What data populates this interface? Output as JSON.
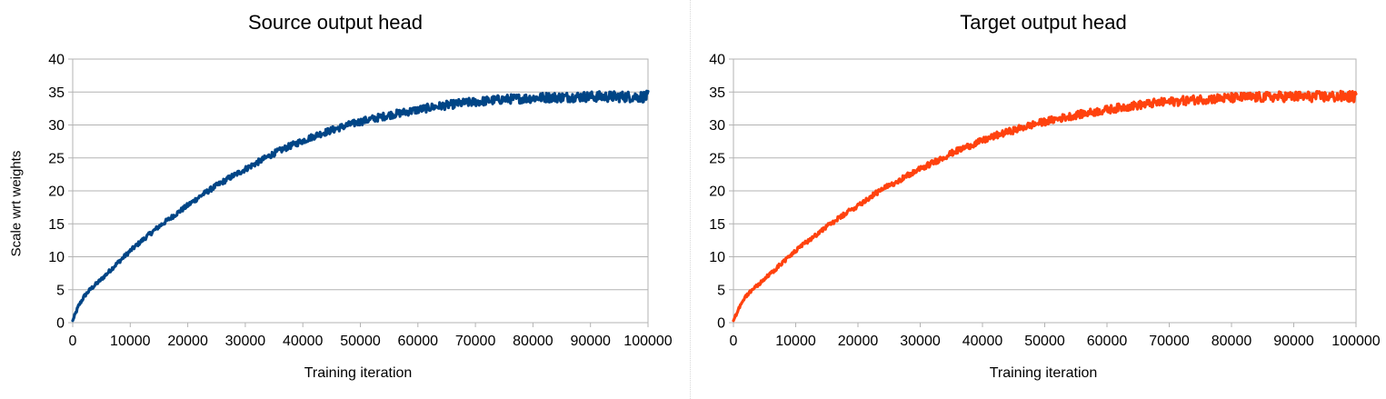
{
  "chart_data": [
    {
      "type": "line",
      "title": "Source output head",
      "xlabel": "Training iteration",
      "ylabel": "Scale wrt weights",
      "xlim": [
        0,
        100000
      ],
      "ylim": [
        0,
        40
      ],
      "xticks": [
        "0",
        "10000",
        "20000",
        "30000",
        "40000",
        "50000",
        "60000",
        "70000",
        "80000",
        "90000",
        "100000"
      ],
      "yticks": [
        "0",
        "5",
        "10",
        "15",
        "20",
        "25",
        "30",
        "35",
        "40"
      ],
      "grid": "horizontal",
      "color": "#004586",
      "series": [
        {
          "x": [
            0,
            1000,
            2000,
            3000,
            4000,
            5000,
            7500,
            10000,
            12500,
            15000,
            17500,
            20000,
            22500,
            25000,
            27500,
            30000,
            32500,
            35000,
            37500,
            40000,
            42500,
            45000,
            47500,
            50000,
            52500,
            55000,
            57500,
            60000,
            62500,
            65000,
            67500,
            70000,
            72500,
            75000,
            77500,
            80000,
            82500,
            85000,
            87500,
            90000,
            92500,
            95000,
            97500,
            100000
          ],
          "y": [
            0.3,
            2.5,
            4.0,
            5.0,
            5.8,
            6.6,
            8.8,
            10.9,
            12.8,
            14.6,
            16.2,
            17.8,
            19.4,
            20.8,
            22.1,
            23.3,
            24.5,
            25.7,
            26.7,
            27.6,
            28.5,
            29.2,
            29.9,
            30.5,
            31.0,
            31.5,
            31.9,
            32.3,
            32.7,
            33.0,
            33.3,
            33.5,
            33.7,
            33.9,
            34.0,
            34.1,
            34.2,
            34.2,
            34.3,
            34.3,
            34.3,
            34.3,
            34.3,
            34.3
          ]
        }
      ]
    },
    {
      "type": "line",
      "title": "Target output head",
      "xlabel": "Training iteration",
      "ylabel": "",
      "xlim": [
        0,
        100000
      ],
      "ylim": [
        0,
        40
      ],
      "xticks": [
        "0",
        "10000",
        "20000",
        "30000",
        "40000",
        "50000",
        "60000",
        "70000",
        "80000",
        "90000",
        "100000"
      ],
      "yticks": [
        "0",
        "5",
        "10",
        "15",
        "20",
        "25",
        "30",
        "35",
        "40"
      ],
      "grid": "horizontal",
      "color": "#ff420e",
      "series": [
        {
          "x": [
            0,
            1000,
            2000,
            3000,
            4000,
            5000,
            7500,
            10000,
            12500,
            15000,
            17500,
            20000,
            22500,
            25000,
            27500,
            30000,
            32500,
            35000,
            37500,
            40000,
            42500,
            45000,
            47500,
            50000,
            52500,
            55000,
            57500,
            60000,
            62500,
            65000,
            67500,
            70000,
            72500,
            75000,
            77500,
            80000,
            82500,
            85000,
            87500,
            90000,
            92500,
            95000,
            97500,
            100000
          ],
          "y": [
            0.3,
            2.5,
            4.0,
            5.0,
            5.8,
            6.6,
            8.8,
            10.9,
            12.8,
            14.6,
            16.2,
            17.8,
            19.4,
            20.8,
            22.1,
            23.3,
            24.5,
            25.7,
            26.7,
            27.6,
            28.5,
            29.2,
            29.9,
            30.5,
            31.0,
            31.5,
            31.9,
            32.3,
            32.7,
            33.0,
            33.3,
            33.5,
            33.7,
            33.9,
            34.0,
            34.1,
            34.2,
            34.2,
            34.3,
            34.3,
            34.3,
            34.3,
            34.3,
            34.3
          ]
        }
      ]
    }
  ]
}
